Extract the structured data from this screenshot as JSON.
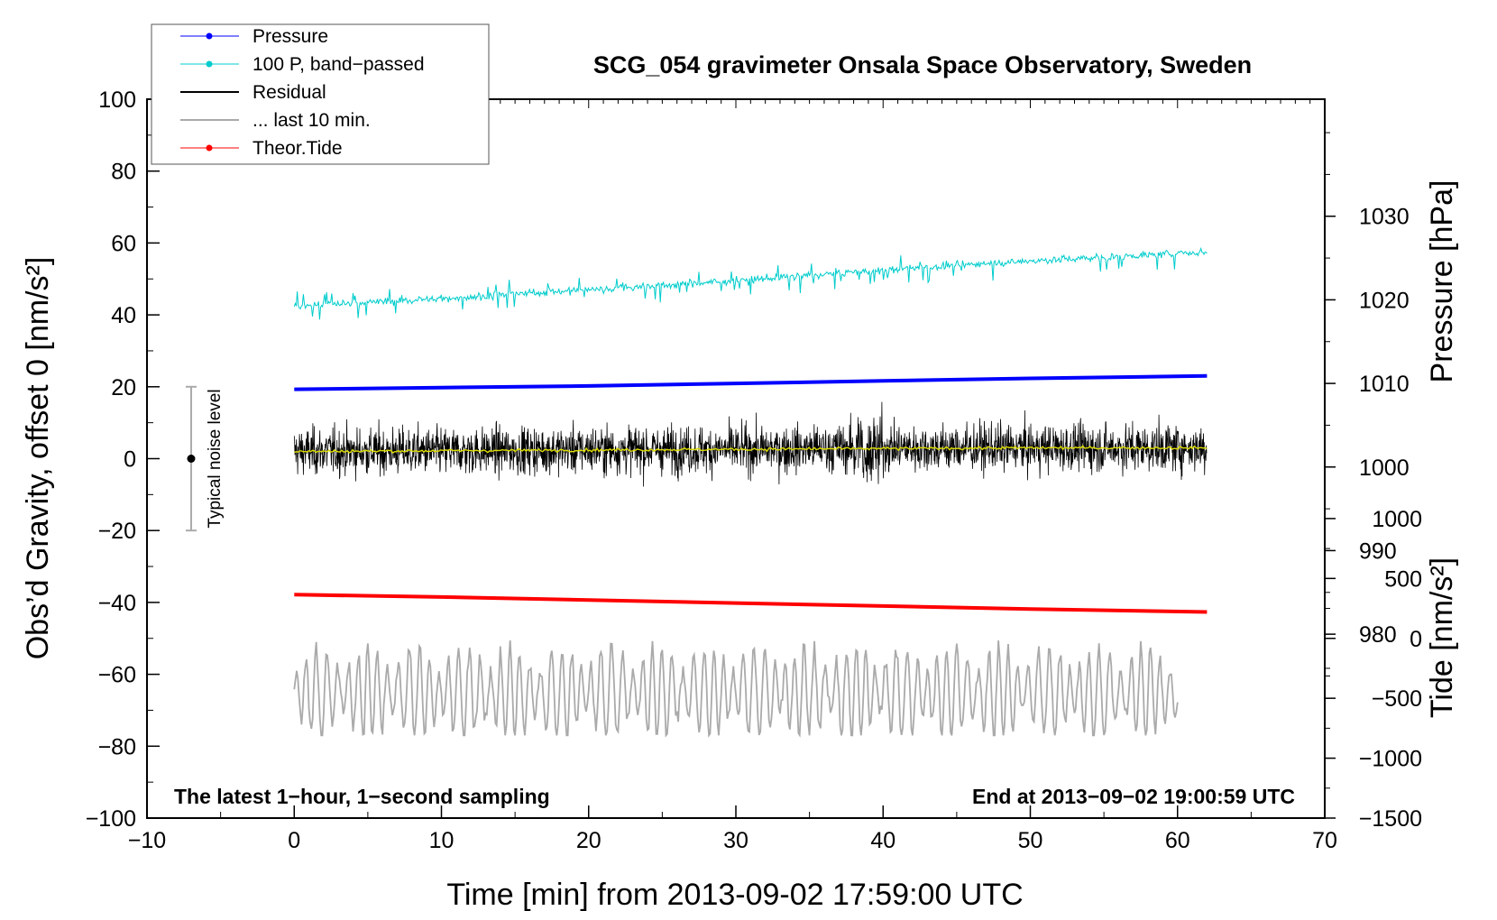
{
  "chart_data": {
    "type": "line",
    "title": "SCG_054 gravimeter Onsala Space Observatory, Sweden",
    "xlabel": "Time [min] from 2013-09-02 17:59:00 UTC",
    "ylabel": "Obs’d Gravity, offset 0 [nm/s²]",
    "ylabel_right_pressure": "Pressure [hPa]",
    "ylabel_right_tide": "Tide [nm/s²]",
    "xlim": [
      -10,
      70
    ],
    "ylim": [
      -100,
      100
    ],
    "xticks": [
      "−10",
      "0",
      "10",
      "20",
      "30",
      "40",
      "50",
      "60",
      "70"
    ],
    "yticks": [
      "100",
      "80",
      "60",
      "40",
      "20",
      "0",
      "−20",
      "−40",
      "−60",
      "−80",
      "−100"
    ],
    "pressure_axis": {
      "range": [
        958,
        1044
      ],
      "ticks": [
        "1030",
        "1020",
        "1010",
        "1000",
        "990",
        "980"
      ]
    },
    "tide_axis": {
      "range": [
        -1500,
        4500
      ],
      "ticks": [
        "1000",
        "500",
        "0",
        "−500",
        "−1000",
        "−1500"
      ]
    },
    "legend": [
      {
        "label": "Pressure",
        "color": "#0000ff",
        "style": "line-dot"
      },
      {
        "label": "100 P, band−passed",
        "color": "#00cccc",
        "style": "line-dot"
      },
      {
        "label": "Residual",
        "color": "#000000",
        "style": "line"
      },
      {
        "label": "... last 10 min.",
        "color": "#aaaaaa",
        "style": "line"
      },
      {
        "label": "Theor.Tide",
        "color": "#ff0000",
        "style": "line-dot"
      }
    ],
    "series": [
      {
        "name": "Pressure",
        "axis": "pressure",
        "color": "#0000ff",
        "x": [
          0,
          10,
          20,
          30,
          40,
          50,
          62
        ],
        "values": [
          1009.3,
          1009.5,
          1009.7,
          1010.0,
          1010.3,
          1010.6,
          1010.9
        ]
      },
      {
        "name": "100 P, band−passed",
        "axis": "gravity",
        "color": "#00cccc",
        "x": [
          0,
          10,
          20,
          30,
          40,
          50,
          62
        ],
        "values": [
          42.5,
          44.5,
          47,
          49.5,
          52.5,
          55,
          57.5
        ]
      },
      {
        "name": "Residual",
        "axis": "gravity",
        "color": "#000000",
        "x": [
          0,
          10,
          20,
          30,
          40,
          50,
          62
        ],
        "values": [
          2,
          2,
          2.5,
          2.5,
          3,
          3,
          3
        ],
        "spread": [
          -17,
          21
        ]
      },
      {
        "name": "Residual smoothed",
        "axis": "gravity",
        "color": "#dddd00",
        "x": [
          0,
          10,
          20,
          30,
          40,
          50,
          62
        ],
        "values": [
          2,
          2.2,
          2.4,
          2.6,
          2.8,
          3,
          3
        ]
      },
      {
        "name": "... last 10 min.",
        "axis": "gravity",
        "color": "#aaaaaa",
        "x": [
          0,
          60
        ],
        "values": [
          -65,
          -65
        ],
        "spread": [
          -77,
          -45
        ]
      },
      {
        "name": "Theor.Tide",
        "axis": "tide",
        "color": "#ff0000",
        "x": [
          0,
          10,
          20,
          30,
          40,
          50,
          62
        ],
        "values": [
          365,
          345,
          320,
          295,
          270,
          245,
          220
        ]
      }
    ],
    "noise_marker": {
      "label": "Typical noise level",
      "x": -7,
      "center": 0,
      "range": [
        -20,
        20
      ]
    },
    "annotations": [
      "The latest 1−hour, 1−second sampling",
      "End at 2013−09−02 19:00:59 UTC"
    ]
  }
}
